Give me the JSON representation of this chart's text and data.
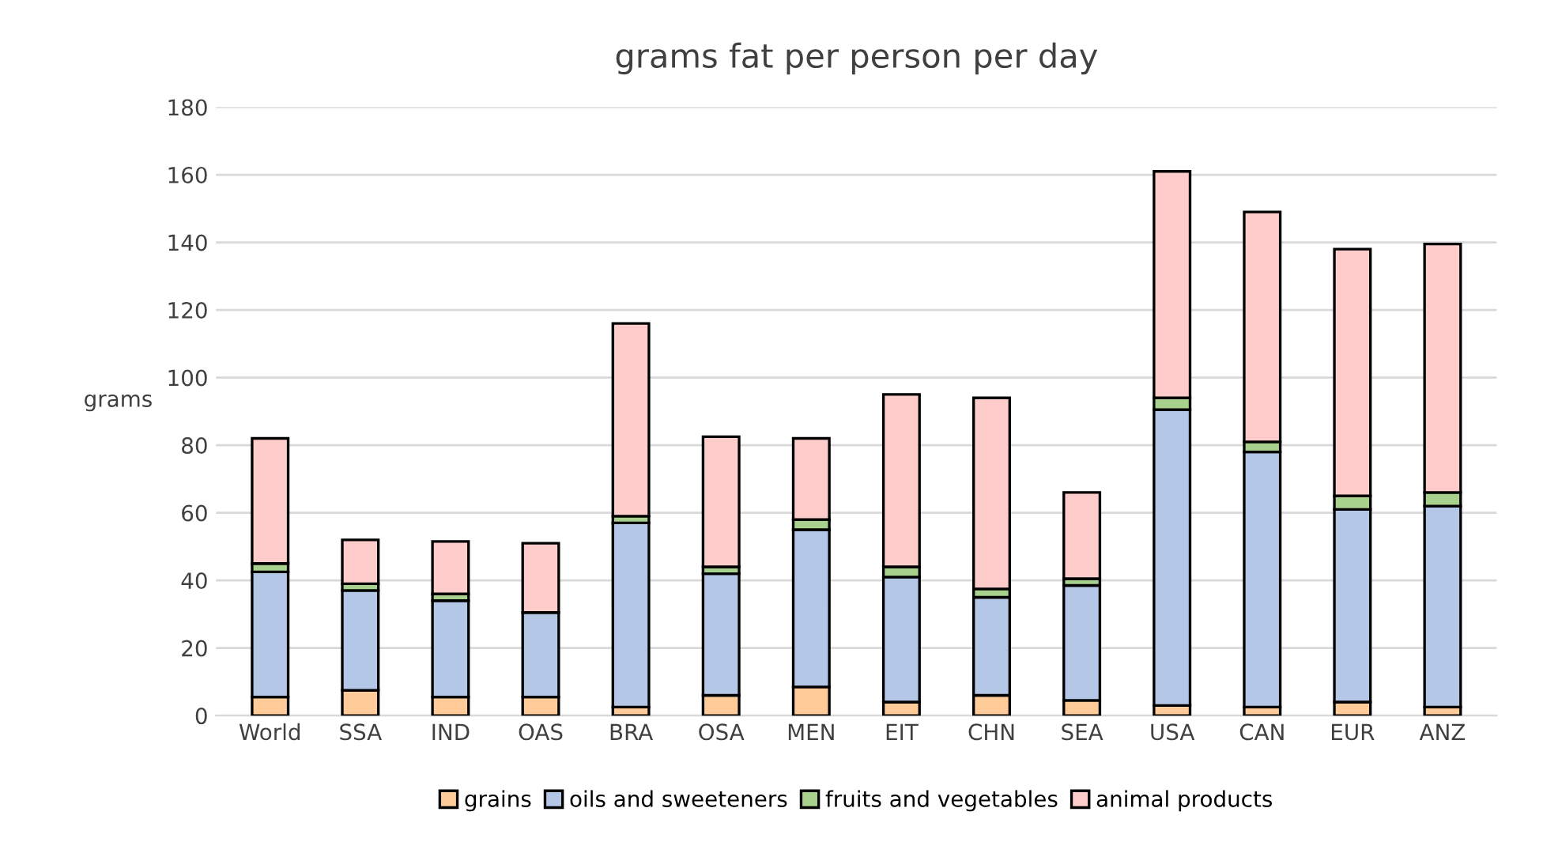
{
  "chart_data": {
    "type": "bar",
    "title": "grams fat per person per day",
    "ylabel": "grams",
    "stacked": true,
    "categories": [
      "World",
      "SSA",
      "IND",
      "OAS",
      "BRA",
      "OSA",
      "MEN",
      "EIT",
      "CHN",
      "SEA",
      "USA",
      "CAN",
      "EUR",
      "ANZ"
    ],
    "series": [
      {
        "name": "grains",
        "color": "#ffcc99",
        "values": [
          5.5,
          7.5,
          5.5,
          5.5,
          2.5,
          6,
          8.5,
          4,
          6,
          4.5,
          3,
          2.5,
          4,
          2.5
        ]
      },
      {
        "name": "oils and sweeteners",
        "color": "#b4c7e7",
        "values": [
          37,
          29.5,
          28.5,
          25,
          54.5,
          36,
          46.5,
          37,
          29,
          34,
          87.5,
          75.5,
          57,
          59.5
        ]
      },
      {
        "name": "fruits and vegetables",
        "color": "#a9d18e",
        "values": [
          2.5,
          2,
          2,
          null,
          2,
          2,
          3,
          3,
          2.5,
          2,
          3.5,
          3,
          4,
          4
        ]
      },
      {
        "name": "animal products",
        "color": "#ffcccc",
        "values": [
          37,
          13,
          15.5,
          20.5,
          57,
          38.5,
          24,
          51,
          56.5,
          25.5,
          67,
          68,
          73,
          73.5
        ]
      }
    ],
    "ylim": [
      0,
      180
    ],
    "yticks": [
      0,
      20,
      40,
      60,
      80,
      100,
      120,
      140,
      160,
      180
    ],
    "grid": "y",
    "legend": "bottom"
  }
}
